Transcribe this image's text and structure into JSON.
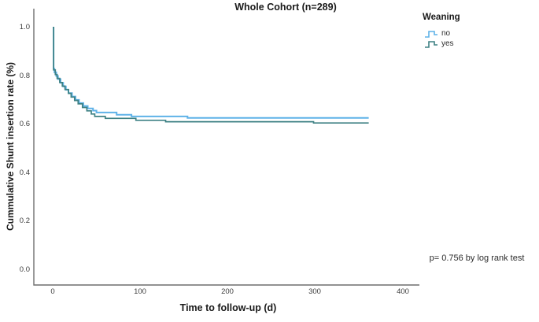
{
  "chart_data": {
    "type": "line",
    "subtype": "kaplan-meier-step",
    "title": "Whole Cohort (n=289)",
    "xlabel": "Time to follow-up (d)",
    "ylabel": "Cummulative Shunt insertion rate (%)",
    "xticks": [
      "0",
      "100",
      "200",
      "300",
      "400"
    ],
    "yticks": [
      "1.0",
      "0.8",
      "0.6",
      "0.4",
      "0.2",
      "0.0"
    ],
    "xlim": [
      0,
      400
    ],
    "ylim": [
      0.0,
      1.0
    ],
    "grid": false,
    "axis_color": "#6f6f6f",
    "legend": {
      "title": "Weaning",
      "position": "outside-top-right"
    },
    "annotation": "p= 0.756 by log rank test",
    "series": [
      {
        "name": "no",
        "color": "#5FB2E8",
        "points": [
          [
            0,
            1.0
          ],
          [
            1,
            0.83
          ],
          [
            2,
            0.815
          ],
          [
            4,
            0.8
          ],
          [
            6,
            0.787
          ],
          [
            9,
            0.772
          ],
          [
            12,
            0.757
          ],
          [
            15,
            0.743
          ],
          [
            18,
            0.729
          ],
          [
            22,
            0.715
          ],
          [
            26,
            0.701
          ],
          [
            30,
            0.688
          ],
          [
            35,
            0.676
          ],
          [
            40,
            0.666
          ],
          [
            46,
            0.657
          ],
          [
            50,
            0.649
          ],
          [
            73,
            0.64
          ],
          [
            90,
            0.633
          ],
          [
            154,
            0.627
          ],
          [
            361,
            0.627
          ]
        ]
      },
      {
        "name": "yes",
        "color": "#3E8184",
        "points": [
          [
            0,
            1.0
          ],
          [
            1,
            0.825
          ],
          [
            3,
            0.806
          ],
          [
            5,
            0.79
          ],
          [
            8,
            0.773
          ],
          [
            11,
            0.758
          ],
          [
            14,
            0.744
          ],
          [
            18,
            0.728
          ],
          [
            21,
            0.713
          ],
          [
            25,
            0.699
          ],
          [
            29,
            0.685
          ],
          [
            34,
            0.67
          ],
          [
            39,
            0.656
          ],
          [
            44,
            0.643
          ],
          [
            48,
            0.633
          ],
          [
            60,
            0.625
          ],
          [
            95,
            0.617
          ],
          [
            129,
            0.611
          ],
          [
            298,
            0.606
          ],
          [
            361,
            0.606
          ]
        ]
      }
    ]
  }
}
